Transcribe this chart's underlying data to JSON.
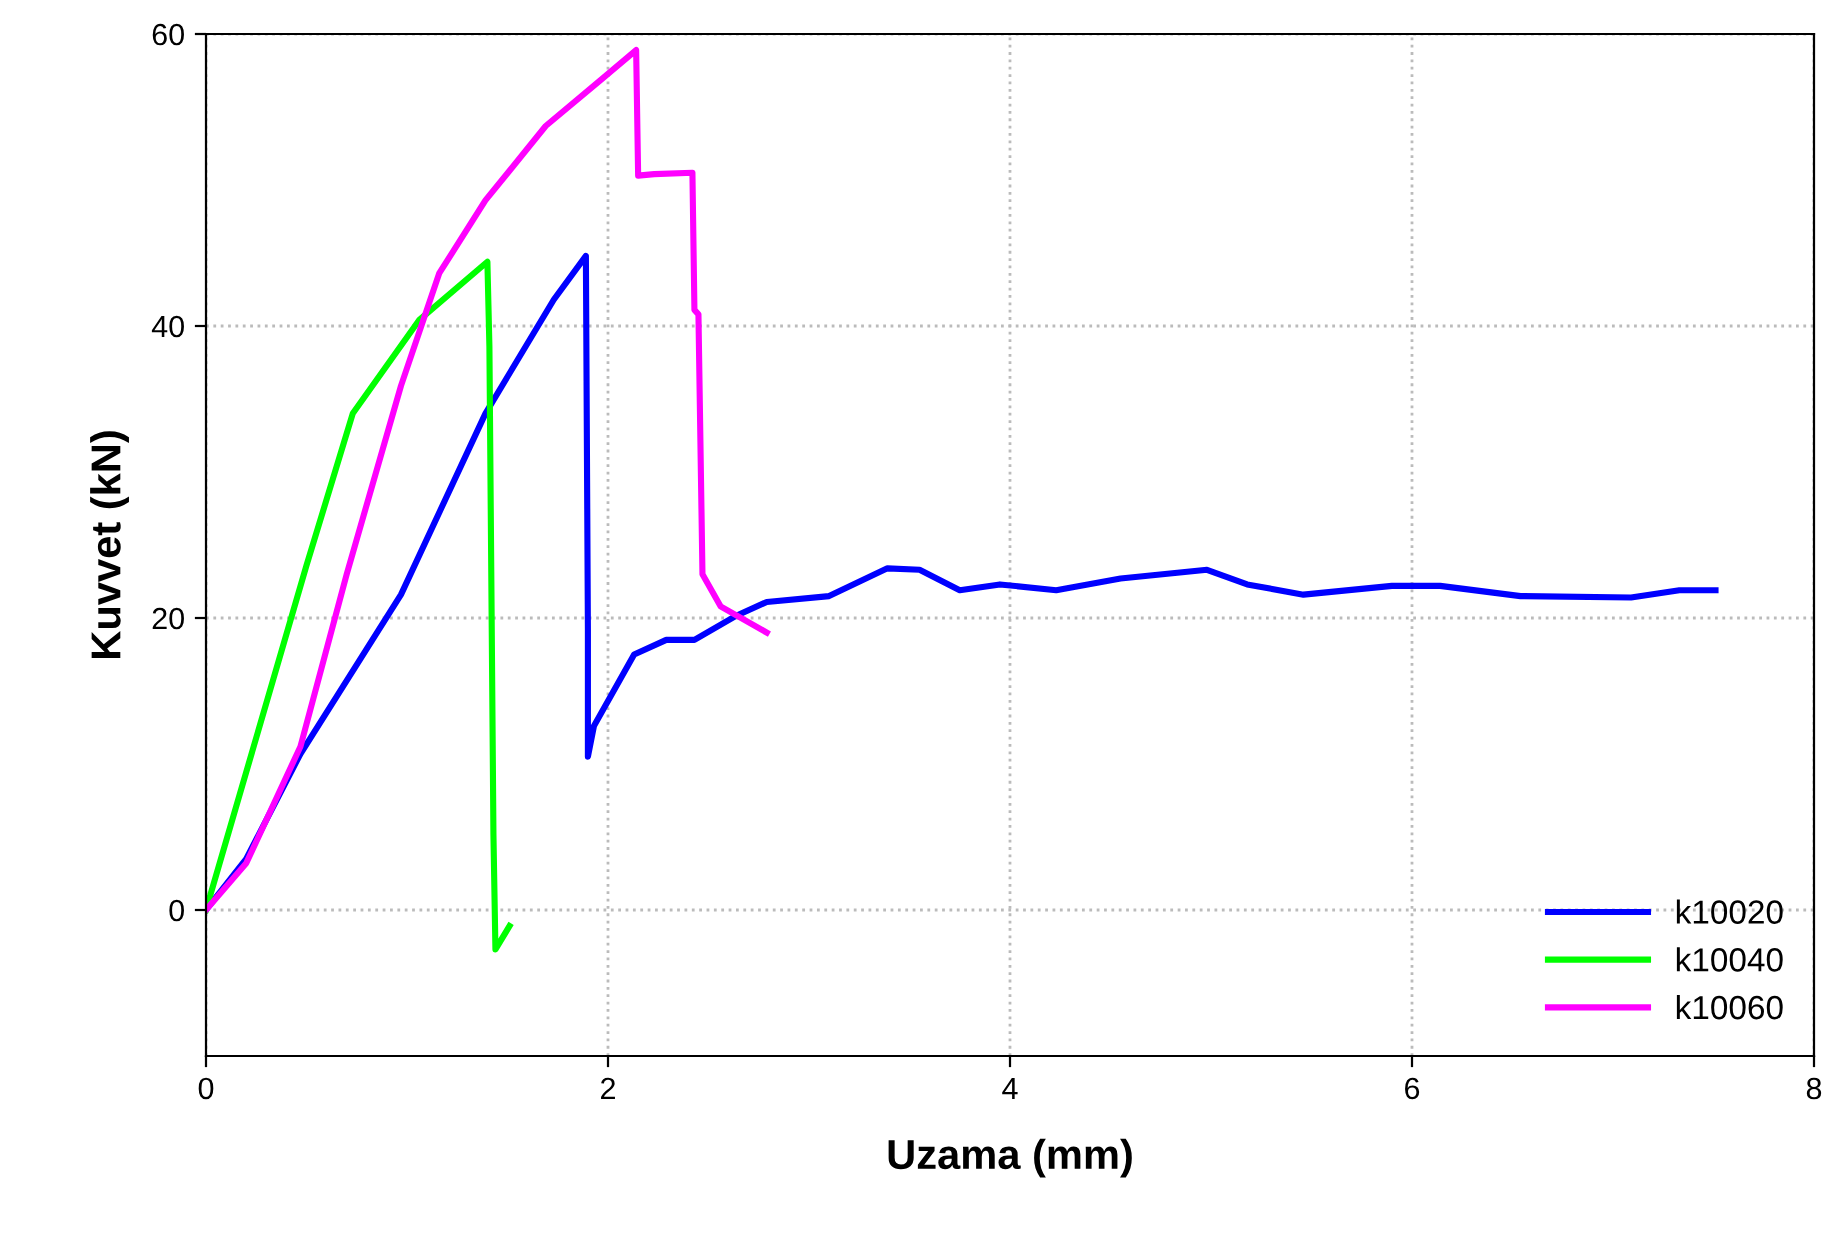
{
  "chart_data": {
    "type": "line",
    "xlabel": "Uzama (mm)",
    "ylabel": "Kuvvet (kN)",
    "xlim": [
      0,
      8
    ],
    "ylim": [
      -10,
      60
    ],
    "xticks": [
      0,
      2,
      4,
      6,
      8
    ],
    "yticks": [
      0,
      20,
      40,
      60
    ],
    "grid": true,
    "legend": "bottom right",
    "marker": "none",
    "line_style": "solid",
    "series": [
      {
        "name": "k10020",
        "color": "#0000ff",
        "x": [
          0,
          0.2,
          0.47,
          0.97,
          1.39,
          1.73,
          1.89,
          1.9,
          1.9,
          1.93,
          2.13,
          2.29,
          2.43,
          2.63,
          2.79,
          3.1,
          3.39,
          3.55,
          3.75,
          3.95,
          4.23,
          4.55,
          4.98,
          5.18,
          5.46,
          5.9,
          6.14,
          6.54,
          7.09,
          7.33,
          7.51
        ],
        "values": [
          0,
          3.5,
          10.7,
          21.6,
          34,
          41.8,
          44.8,
          19.2,
          10.5,
          12.6,
          17.5,
          18.5,
          18.5,
          20.1,
          21.1,
          21.5,
          23.4,
          23.3,
          21.9,
          22.3,
          21.9,
          22.7,
          23.3,
          22.3,
          21.6,
          22.2,
          22.2,
          21.5,
          21.4,
          21.9,
          21.9
        ]
      },
      {
        "name": "k10040",
        "color": "#00ff00",
        "x": [
          0,
          0.5,
          0.73,
          1.06,
          1.4,
          1.41,
          1.43,
          1.44,
          1.51
        ],
        "values": [
          0,
          23.6,
          34,
          40.4,
          44.4,
          38.6,
          5.2,
          -2.7,
          -1.1
        ]
      },
      {
        "name": "k10060",
        "color": "#ff00ff",
        "x": [
          0,
          0.2,
          0.47,
          0.7,
          0.97,
          1.16,
          1.39,
          1.69,
          1.96,
          2.14,
          2.15,
          2.23,
          2.42,
          2.43,
          2.45,
          2.47,
          2.56,
          2.79
        ],
        "values": [
          0,
          3.2,
          11.2,
          23,
          35.9,
          43.6,
          48.6,
          53.7,
          56.8,
          58.9,
          50.3,
          50.4,
          50.5,
          41.1,
          40.8,
          23,
          20.8,
          19
        ]
      }
    ]
  }
}
